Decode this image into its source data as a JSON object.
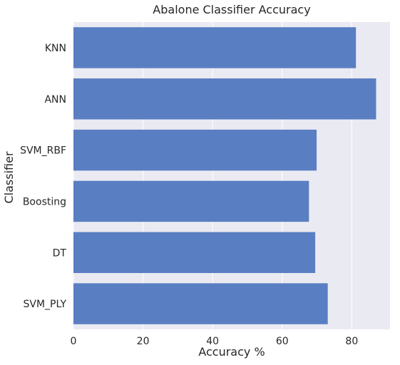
{
  "chart_data": {
    "type": "bar",
    "orientation": "horizontal",
    "title": "Abalone Classifier Accuracy",
    "xlabel": "Accuracy %",
    "ylabel": "Classifier",
    "categories": [
      "KNN",
      "ANN",
      "SVM_RBF",
      "Boosting",
      "DT",
      "SVM_PLY"
    ],
    "values": [
      81.2,
      87.0,
      69.9,
      67.7,
      69.5,
      73.1
    ],
    "xlim": [
      0,
      91
    ],
    "xticks": [
      0,
      20,
      40,
      60,
      80
    ],
    "grid": true,
    "colors": {
      "bar": "#5A7EC2",
      "plot_background": "#EAEAF2",
      "grid": "#FFFFFF"
    }
  }
}
